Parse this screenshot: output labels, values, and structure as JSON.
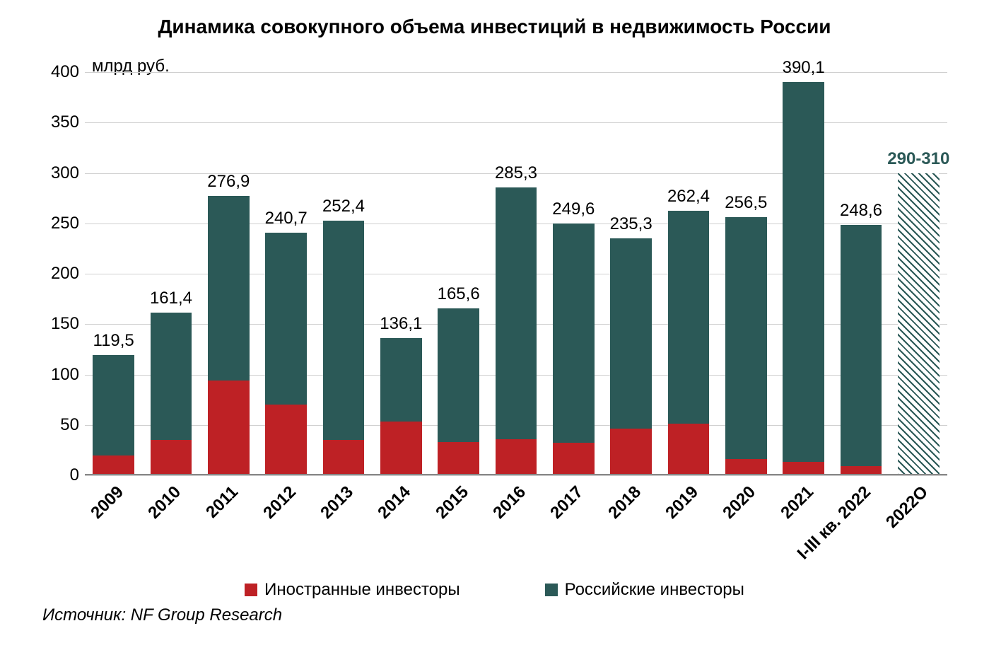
{
  "chart": {
    "type": "stacked-bar",
    "title": "Динамика совокупного объема инвестиций в недвижимость России",
    "title_fontsize": 28,
    "ylabel": "млрд руб.",
    "ylabel_fontsize": 24,
    "ylim": [
      0,
      400
    ],
    "ytick_step": 50,
    "yticks": [
      "0",
      "50",
      "100",
      "150",
      "200",
      "250",
      "300",
      "350",
      "400"
    ],
    "tick_fontsize": 24,
    "value_label_fontsize": 24,
    "xlabel_fontsize": 24,
    "legend_fontsize": 24,
    "background_color": "#ffffff",
    "grid_color": "#d0d0d0",
    "colors": {
      "foreign": "#be2125",
      "russian": "#2b5957",
      "forecast_label": "#2b5957"
    },
    "bar_width_ratio": 0.72,
    "categories": [
      "2009",
      "2010",
      "2011",
      "2012",
      "2013",
      "2014",
      "2015",
      "2016",
      "2017",
      "2018",
      "2019",
      "2020",
      "2021",
      "I-III кв. 2022",
      "2022О"
    ],
    "series": {
      "foreign": {
        "label": "Иностранные инвесторы",
        "values": [
          20,
          35,
          94,
          70,
          35,
          53,
          33,
          36,
          32,
          46,
          51,
          16,
          13,
          9,
          0
        ]
      },
      "russian": {
        "label": "Российские инвесторы",
        "values": [
          99.5,
          126.4,
          182.9,
          170.7,
          217.4,
          83.1,
          132.6,
          249.3,
          217.6,
          189.3,
          211.4,
          240.5,
          377.1,
          239.6,
          0
        ]
      }
    },
    "totals_labels": [
      "119,5",
      "161,4",
      "276,9",
      "240,7",
      "252,4",
      "136,1",
      "165,6",
      "285,3",
      "249,6",
      "235,3",
      "262,4",
      "256,5",
      "390,1",
      "248,6",
      "290-310"
    ],
    "totals_values": [
      119.5,
      161.4,
      276.9,
      240.7,
      252.4,
      136.1,
      165.6,
      285.3,
      249.6,
      235.3,
      262.4,
      256.5,
      390.1,
      248.6,
      300
    ],
    "forecast_index": 14,
    "legend": [
      {
        "key": "foreign",
        "label": "Иностранные инвесторы"
      },
      {
        "key": "russian",
        "label": "Российские инвесторы"
      }
    ],
    "source": "Источник: NF Group Research",
    "source_fontsize": 24
  }
}
